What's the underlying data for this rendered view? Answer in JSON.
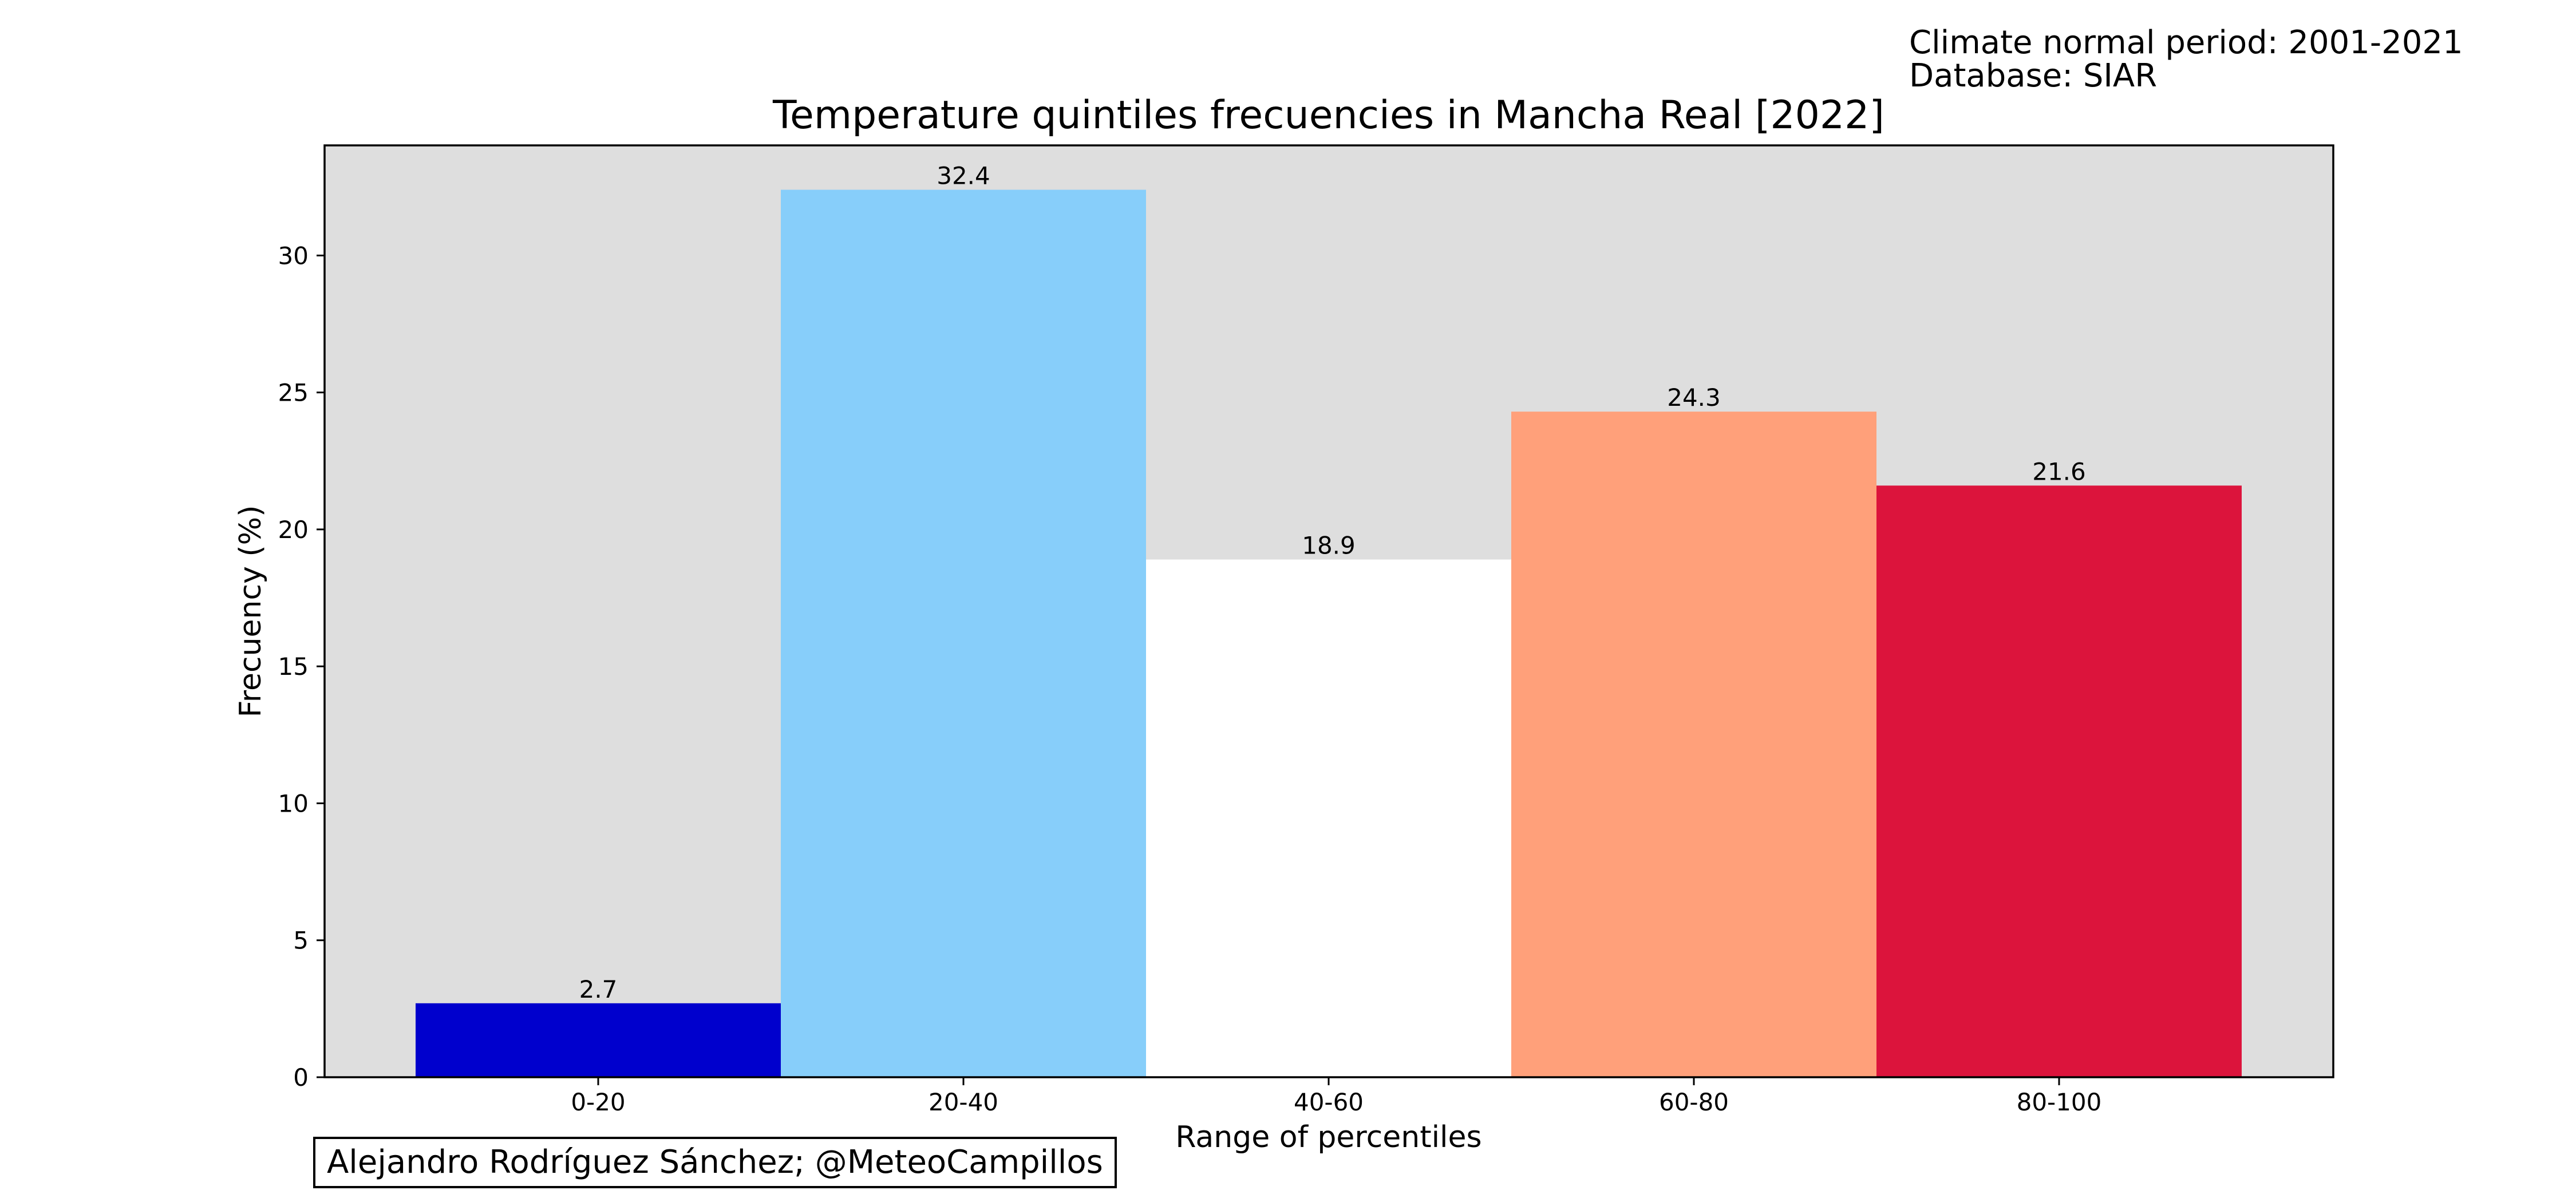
{
  "notes": {
    "line1": "Climate normal period: 2001-2021",
    "line2": "Database: SIAR"
  },
  "credit": "Alejandro Rodríguez Sánchez; @MeteoCampillos",
  "colors": {
    "plot_background": "#dedede",
    "bars": [
      "#0000cd",
      "#87cefa",
      "#ffffff",
      "#ffa07a",
      "#dc143c"
    ]
  },
  "chart_data": {
    "type": "bar",
    "title": "Temperature quintiles frecuencies in Mancha Real [2022]",
    "xlabel": "Range of percentiles",
    "ylabel": "Frecuency (%)",
    "categories": [
      "0-20",
      "20-40",
      "40-60",
      "60-80",
      "80-100"
    ],
    "values": [
      2.7,
      32.4,
      18.9,
      24.3,
      21.6
    ],
    "data_labels": [
      "2.7",
      "32.4",
      "18.9",
      "24.3",
      "21.6"
    ],
    "yticks": [
      0,
      5,
      10,
      15,
      20,
      25,
      30
    ],
    "ylim": [
      0,
      34.02
    ],
    "grid": false,
    "legend": "none"
  }
}
